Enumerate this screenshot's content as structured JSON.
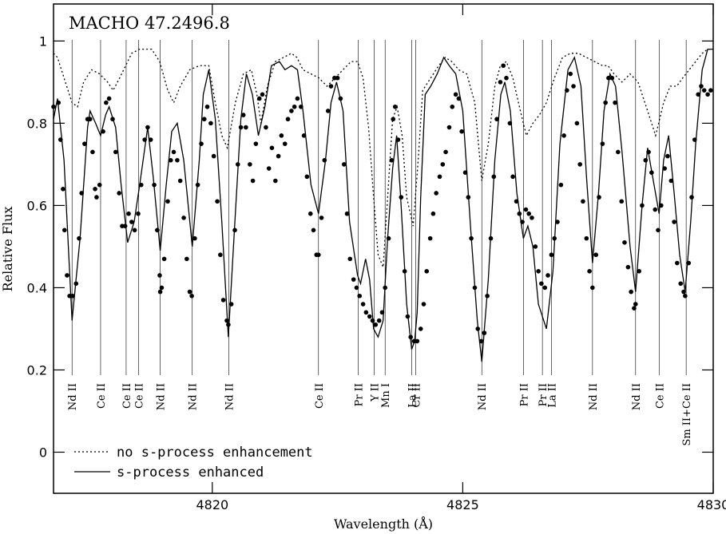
{
  "chart_data": {
    "type": "line",
    "title": "MACHO 47.2496.8",
    "xlabel": "Wavelength (Å)",
    "ylabel": "Relative Flux",
    "xlim": [
      4816.83,
      4830.0
    ],
    "ylim": [
      -0.1,
      1.09
    ],
    "xticks": [
      4820,
      4825,
      4830
    ],
    "yticks": [
      0,
      0.2,
      0.4,
      0.6,
      0.8,
      1
    ],
    "grid": false,
    "legend": "lower left",
    "series": [
      {
        "name": "no s-process enhancement",
        "style": "dotted",
        "color": "#000000",
        "x": [
          4816.83,
          4816.91,
          4817.04,
          4817.2,
          4817.31,
          4817.43,
          4817.59,
          4817.75,
          4817.91,
          4818.02,
          4818.15,
          4818.39,
          4818.55,
          4818.79,
          4818.95,
          4819.11,
          4819.23,
          4819.36,
          4819.55,
          4819.74,
          4819.93,
          4820.06,
          4820.19,
          4820.3,
          4820.46,
          4820.62,
          4820.78,
          4820.89,
          4820.97,
          4821.1,
          4821.26,
          4821.42,
          4821.58,
          4821.69,
          4821.81,
          4821.97,
          4822.13,
          4822.29,
          4822.45,
          4822.61,
          4822.77,
          4822.9,
          4823.01,
          4823.12,
          4823.22,
          4823.31,
          4823.41,
          4823.5,
          4823.6,
          4823.69,
          4823.79,
          4823.88,
          4824.01,
          4824.11,
          4824.2,
          4824.36,
          4824.52,
          4824.65,
          4824.78,
          4824.92,
          4825.08,
          4825.24,
          4825.38,
          4825.51,
          4825.64,
          4825.75,
          4825.87,
          4826.0,
          4826.15,
          4826.27,
          4826.4,
          4826.53,
          4826.67,
          4826.83,
          4826.99,
          4827.15,
          4827.31,
          4827.47,
          4827.63,
          4827.79,
          4827.9,
          4828.02,
          4828.18,
          4828.34,
          4828.5,
          4828.69,
          4828.85,
          4829.01,
          4829.14,
          4829.27,
          4829.39,
          4829.52,
          4829.65,
          4829.78,
          4829.89,
          4830.0
        ],
        "values": [
          0.97,
          0.96,
          0.91,
          0.85,
          0.84,
          0.9,
          0.93,
          0.92,
          0.9,
          0.88,
          0.91,
          0.97,
          0.98,
          0.98,
          0.95,
          0.88,
          0.85,
          0.89,
          0.93,
          0.94,
          0.94,
          0.85,
          0.77,
          0.74,
          0.85,
          0.92,
          0.93,
          0.87,
          0.8,
          0.89,
          0.95,
          0.96,
          0.97,
          0.96,
          0.93,
          0.92,
          0.91,
          0.89,
          0.91,
          0.93,
          0.95,
          0.95,
          0.91,
          0.79,
          0.62,
          0.48,
          0.45,
          0.62,
          0.81,
          0.84,
          0.77,
          0.62,
          0.55,
          0.71,
          0.88,
          0.91,
          0.94,
          0.96,
          0.95,
          0.93,
          0.92,
          0.85,
          0.66,
          0.75,
          0.89,
          0.94,
          0.95,
          0.91,
          0.83,
          0.77,
          0.8,
          0.82,
          0.85,
          0.91,
          0.96,
          0.97,
          0.97,
          0.96,
          0.95,
          0.94,
          0.94,
          0.92,
          0.9,
          0.92,
          0.9,
          0.83,
          0.77,
          0.85,
          0.89,
          0.89,
          0.91,
          0.93,
          0.95,
          0.97,
          0.98,
          0.98
        ]
      },
      {
        "name": "s-process enhanced",
        "style": "solid",
        "color": "#000000",
        "x": [
          4816.83,
          4816.91,
          4817.04,
          4817.2,
          4817.36,
          4817.51,
          4817.56,
          4817.67,
          4817.77,
          4817.87,
          4817.94,
          4818.07,
          4818.18,
          4818.31,
          4818.44,
          4818.55,
          4818.71,
          4818.82,
          4818.96,
          4819.08,
          4819.19,
          4819.3,
          4819.43,
          4819.6,
          4819.74,
          4819.82,
          4819.93,
          4820.06,
          4820.19,
          4820.32,
          4820.46,
          4820.57,
          4820.68,
          4820.8,
          4820.92,
          4821.05,
          4821.18,
          4821.34,
          4821.45,
          4821.58,
          4821.7,
          4821.81,
          4821.97,
          4822.12,
          4822.26,
          4822.37,
          4822.48,
          4822.61,
          4822.74,
          4822.9,
          4822.96,
          4823.06,
          4823.14,
          4823.22,
          4823.31,
          4823.41,
          4823.5,
          4823.6,
          4823.68,
          4823.76,
          4823.88,
          4823.98,
          4824.04,
          4824.09,
          4824.16,
          4824.25,
          4824.36,
          4824.49,
          4824.62,
          4824.73,
          4824.86,
          4825.0,
          4825.16,
          4825.29,
          4825.38,
          4825.51,
          4825.64,
          4825.76,
          4825.84,
          4825.95,
          4826.08,
          4826.21,
          4826.3,
          4826.4,
          4826.51,
          4826.67,
          4826.8,
          4826.94,
          4827.1,
          4827.23,
          4827.36,
          4827.47,
          4827.59,
          4827.71,
          4827.82,
          4827.94,
          4828.05,
          4828.18,
          4828.34,
          4828.45,
          4828.58,
          4828.69,
          4828.79,
          4828.92,
          4829.01,
          4829.11,
          4829.22,
          4829.33,
          4829.44,
          4829.55,
          4829.65,
          4829.78,
          4829.89,
          4830.0
        ],
        "values": [
          0.81,
          0.86,
          0.71,
          0.32,
          0.52,
          0.79,
          0.83,
          0.8,
          0.77,
          0.82,
          0.84,
          0.79,
          0.65,
          0.51,
          0.56,
          0.65,
          0.79,
          0.67,
          0.49,
          0.65,
          0.78,
          0.8,
          0.71,
          0.5,
          0.71,
          0.87,
          0.93,
          0.81,
          0.56,
          0.28,
          0.58,
          0.81,
          0.92,
          0.87,
          0.77,
          0.84,
          0.94,
          0.95,
          0.93,
          0.94,
          0.93,
          0.83,
          0.65,
          0.58,
          0.71,
          0.85,
          0.9,
          0.83,
          0.56,
          0.43,
          0.41,
          0.47,
          0.42,
          0.3,
          0.28,
          0.32,
          0.52,
          0.69,
          0.77,
          0.62,
          0.36,
          0.25,
          0.27,
          0.34,
          0.62,
          0.87,
          0.89,
          0.92,
          0.96,
          0.94,
          0.92,
          0.83,
          0.54,
          0.32,
          0.22,
          0.42,
          0.71,
          0.87,
          0.9,
          0.83,
          0.63,
          0.52,
          0.55,
          0.5,
          0.36,
          0.3,
          0.44,
          0.75,
          0.93,
          0.96,
          0.89,
          0.67,
          0.46,
          0.63,
          0.83,
          0.92,
          0.89,
          0.73,
          0.5,
          0.39,
          0.6,
          0.74,
          0.67,
          0.58,
          0.71,
          0.77,
          0.63,
          0.48,
          0.39,
          0.56,
          0.75,
          0.93,
          0.98,
          0.98
        ]
      },
      {
        "style": "dots",
        "color": "#000000",
        "x": [
          4816.83,
          4816.93,
          4816.97,
          4817.02,
          4817.05,
          4817.1,
          4817.15,
          4817.21,
          4817.28,
          4817.34,
          4817.39,
          4817.45,
          4817.51,
          4817.56,
          4817.61,
          4817.66,
          4817.69,
          4817.75,
          4817.82,
          4817.88,
          4817.94,
          4818.01,
          4818.07,
          4818.14,
          4818.2,
          4818.26,
          4818.33,
          4818.39,
          4818.45,
          4818.52,
          4818.58,
          4818.65,
          4818.71,
          4818.77,
          4818.84,
          4818.9,
          4818.95,
          4818.96,
          4818.99,
          4819.04,
          4819.11,
          4819.17,
          4819.23,
          4819.3,
          4819.36,
          4819.43,
          4819.49,
          4819.55,
          4819.59,
          4819.65,
          4819.71,
          4819.78,
          4819.84,
          4819.9,
          4819.97,
          4820.03,
          4820.1,
          4820.16,
          4820.22,
          4820.29,
          4820.32,
          4820.38,
          4820.45,
          4820.51,
          4820.57,
          4820.62,
          4820.67,
          4820.75,
          4820.81,
          4820.87,
          4820.94,
          4821.0,
          4821.07,
          4821.13,
          4821.19,
          4821.26,
          4821.32,
          4821.38,
          4821.45,
          4821.51,
          4821.58,
          4821.64,
          4821.7,
          4821.77,
          4821.83,
          4821.89,
          4821.96,
          4822.02,
          4822.08,
          4822.12,
          4822.18,
          4822.24,
          4822.31,
          4822.37,
          4822.44,
          4822.5,
          4822.56,
          4822.63,
          4822.69,
          4822.75,
          4822.82,
          4822.88,
          4822.94,
          4823.01,
          4823.07,
          4823.14,
          4823.2,
          4823.26,
          4823.33,
          4823.39,
          4823.45,
          4823.52,
          4823.58,
          4823.61,
          4823.65,
          4823.71,
          4823.77,
          4823.84,
          4823.9,
          4823.96,
          4824.03,
          4824.09,
          4824.16,
          4824.22,
          4824.28,
          4824.35,
          4824.41,
          4824.47,
          4824.54,
          4824.6,
          4824.66,
          4824.73,
          4824.79,
          4824.86,
          4824.92,
          4824.98,
          4825.05,
          4825.11,
          4825.17,
          4825.24,
          4825.3,
          4825.37,
          4825.43,
          4825.49,
          4825.56,
          4825.62,
          4825.68,
          4825.75,
          4825.81,
          4825.87,
          4825.94,
          4826.0,
          4826.07,
          4826.13,
          4826.19,
          4826.26,
          4826.32,
          4826.38,
          4826.45,
          4826.51,
          4826.57,
          4826.64,
          4826.7,
          4826.77,
          4826.83,
          4826.89,
          4826.96,
          4827.02,
          4827.08,
          4827.15,
          4827.21,
          4827.28,
          4827.34,
          4827.4,
          4827.47,
          4827.53,
          4827.59,
          4827.66,
          4827.72,
          4827.79,
          4827.85,
          4827.91,
          4827.98,
          4828.04,
          4828.1,
          4828.17,
          4828.23,
          4828.3,
          4828.36,
          4828.42,
          4828.45,
          4828.52,
          4828.58,
          4828.65,
          4828.71,
          4828.77,
          4828.84,
          4828.9,
          4828.96,
          4829.03,
          4829.09,
          4829.16,
          4829.22,
          4829.28,
          4829.35,
          4829.41,
          4829.44,
          4829.51,
          4829.57,
          4829.63,
          4829.7,
          4829.76,
          4829.82,
          4829.89,
          4829.95
        ],
        "values": [
          0.84,
          0.85,
          0.76,
          0.64,
          0.54,
          0.43,
          0.38,
          0.38,
          0.41,
          0.52,
          0.63,
          0.75,
          0.81,
          0.81,
          0.73,
          0.64,
          0.62,
          0.65,
          0.78,
          0.85,
          0.86,
          0.81,
          0.73,
          0.63,
          0.55,
          0.55,
          0.58,
          0.56,
          0.54,
          0.58,
          0.65,
          0.76,
          0.79,
          0.76,
          0.65,
          0.54,
          0.43,
          0.39,
          0.4,
          0.47,
          0.61,
          0.71,
          0.73,
          0.71,
          0.66,
          0.57,
          0.47,
          0.39,
          0.38,
          0.52,
          0.65,
          0.75,
          0.81,
          0.84,
          0.8,
          0.72,
          0.61,
          0.48,
          0.37,
          0.32,
          0.31,
          0.36,
          0.54,
          0.7,
          0.79,
          0.82,
          0.79,
          0.7,
          0.66,
          0.75,
          0.86,
          0.87,
          0.79,
          0.69,
          0.74,
          0.66,
          0.72,
          0.77,
          0.75,
          0.81,
          0.83,
          0.84,
          0.86,
          0.84,
          0.77,
          0.67,
          0.58,
          0.54,
          0.48,
          0.48,
          0.57,
          0.71,
          0.83,
          0.89,
          0.91,
          0.91,
          0.86,
          0.7,
          0.58,
          0.47,
          0.42,
          0.4,
          0.38,
          0.36,
          0.34,
          0.33,
          0.32,
          0.31,
          0.32,
          0.34,
          0.4,
          0.52,
          0.71,
          0.81,
          0.84,
          0.76,
          0.62,
          0.44,
          0.33,
          0.28,
          0.27,
          0.27,
          0.3,
          0.36,
          0.44,
          0.52,
          0.58,
          0.63,
          0.67,
          0.7,
          0.73,
          0.79,
          0.84,
          0.87,
          0.86,
          0.78,
          0.68,
          0.62,
          0.52,
          0.4,
          0.3,
          0.27,
          0.29,
          0.38,
          0.52,
          0.67,
          0.81,
          0.9,
          0.94,
          0.91,
          0.8,
          0.67,
          0.61,
          0.58,
          0.56,
          0.59,
          0.58,
          0.57,
          0.5,
          0.44,
          0.41,
          0.4,
          0.43,
          0.48,
          0.52,
          0.56,
          0.65,
          0.77,
          0.88,
          0.92,
          0.89,
          0.8,
          0.7,
          0.61,
          0.52,
          0.44,
          0.4,
          0.48,
          0.62,
          0.75,
          0.85,
          0.91,
          0.91,
          0.85,
          0.73,
          0.61,
          0.51,
          0.45,
          0.39,
          0.35,
          0.36,
          0.44,
          0.6,
          0.71,
          0.73,
          0.68,
          0.59,
          0.54,
          0.6,
          0.69,
          0.72,
          0.66,
          0.56,
          0.46,
          0.41,
          0.39,
          0.38,
          0.46,
          0.62,
          0.76,
          0.87,
          0.89,
          0.88,
          0.87,
          0.88
        ]
      }
    ],
    "line_ids": [
      {
        "label": "Nd II",
        "x": 4817.2
      },
      {
        "label": "Ce II",
        "x": 4817.77
      },
      {
        "label": "Ce II",
        "x": 4818.28
      },
      {
        "label": "Ce II",
        "x": 4818.53
      },
      {
        "label": "Nd II",
        "x": 4818.96
      },
      {
        "label": "Nd II",
        "x": 4819.6
      },
      {
        "label": "Nd II",
        "x": 4820.33
      },
      {
        "label": "Ce II",
        "x": 4822.12
      },
      {
        "label": "Pr II",
        "x": 4822.91
      },
      {
        "label": "Y II",
        "x": 4823.23
      },
      {
        "label": "Mn I",
        "x": 4823.45
      },
      {
        "label": "La II",
        "x": 4823.98
      },
      {
        "label": "Cr II",
        "x": 4824.06
      },
      {
        "label": "Nd II",
        "x": 4825.38
      },
      {
        "label": "Pr II",
        "x": 4826.21
      },
      {
        "label": "Pr II",
        "x": 4826.59
      },
      {
        "label": "La II",
        "x": 4826.77
      },
      {
        "label": "Nd II",
        "x": 4827.59
      },
      {
        "label": "Nd II",
        "x": 4828.45
      },
      {
        "label": "Ce II",
        "x": 4828.92
      },
      {
        "label": "Sm II+Ce II",
        "x": 4829.46
      }
    ]
  }
}
